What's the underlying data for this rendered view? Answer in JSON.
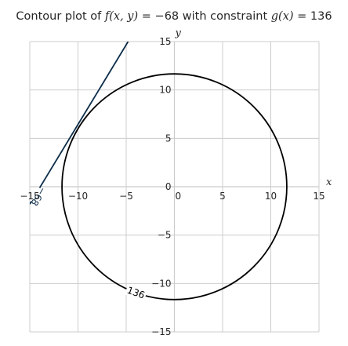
{
  "chart_data": {
    "type": "line",
    "title_prefix": "Contour plot of ",
    "title_f": "f(x, y)",
    "title_mid": " = −68 with constraint ",
    "title_g": "g(x)",
    "title_suffix": " = 136",
    "xlabel": "x",
    "ylabel": "y",
    "xlim": [
      -15,
      15
    ],
    "ylim": [
      -15,
      15
    ],
    "xticks": [
      -15,
      -10,
      -5,
      0,
      5,
      10,
      15
    ],
    "yticks": [
      -15,
      -10,
      -5,
      0,
      5,
      10,
      15
    ],
    "xtick_labels": [
      "−15",
      "−10",
      "−5",
      "0",
      "5",
      "10",
      "15"
    ],
    "ytick_labels": [
      "−15",
      "−10",
      "−5",
      "0",
      "5",
      "10",
      "15"
    ],
    "grid": true,
    "series": [
      {
        "label": "−68",
        "color": "#0c2d4a",
        "kind": "line",
        "points": [
          [
            -15,
            -1.8
          ],
          [
            -4.8,
            15
          ]
        ]
      },
      {
        "label": "136",
        "color": "#000000",
        "kind": "circle",
        "center": [
          0,
          0
        ],
        "radius": 11.66
      }
    ],
    "line_label_at": [
      -14.1,
      -1.0
    ],
    "circle_label_angle_deg": 250
  }
}
